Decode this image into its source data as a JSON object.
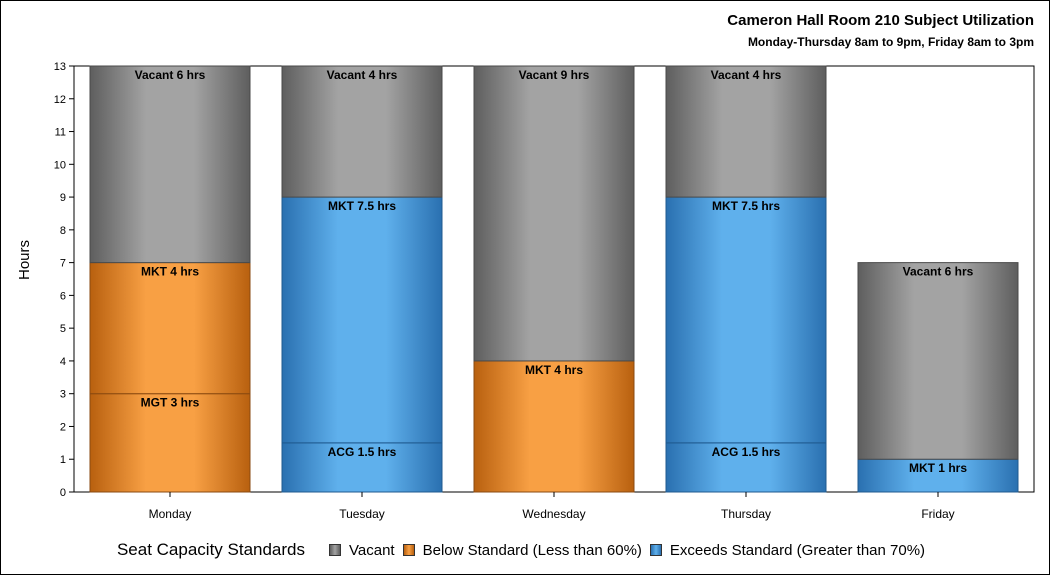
{
  "chart_data": {
    "type": "bar",
    "stacked": true,
    "title": "Cameron Hall Room 210 Subject Utilization",
    "subtitle": "Monday-Thursday 8am to 9pm, Friday 8am to 3pm",
    "xlabel": "",
    "ylabel": "Hours",
    "ylim": [
      0,
      13
    ],
    "yticks": [
      "0",
      "1",
      "2",
      "3",
      "4",
      "5",
      "6",
      "7",
      "8",
      "9",
      "10",
      "11",
      "12",
      "13"
    ],
    "categories": [
      "Monday",
      "Tuesday",
      "Wednesday",
      "Thursday",
      "Friday"
    ],
    "grid": false,
    "legend": {
      "title": "Seat Capacity Standards",
      "placement": "bottom",
      "items": [
        {
          "label": "Vacant",
          "color": "#9e9e9e"
        },
        {
          "label": "Below Standard (Less than 60%)",
          "color": "#f59a3c"
        },
        {
          "label": "Exceeds Standard (Greater than 70%)",
          "color": "#5aace8"
        }
      ]
    },
    "stacks": [
      {
        "category": "Monday",
        "segments": [
          {
            "label": "MGT 3 hrs",
            "value": 3,
            "status": "Below Standard (Less than 60%)"
          },
          {
            "label": "MKT 4 hrs",
            "value": 4,
            "status": "Below Standard (Less than 60%)"
          },
          {
            "label": "Vacant 6 hrs",
            "value": 6,
            "status": "Vacant"
          }
        ]
      },
      {
        "category": "Tuesday",
        "segments": [
          {
            "label": "ACG 1.5 hrs",
            "value": 1.5,
            "status": "Exceeds Standard (Greater than 70%)"
          },
          {
            "label": "MKT 7.5 hrs",
            "value": 7.5,
            "status": "Exceeds Standard (Greater than 70%)"
          },
          {
            "label": "Vacant 4 hrs",
            "value": 4,
            "status": "Vacant"
          }
        ]
      },
      {
        "category": "Wednesday",
        "segments": [
          {
            "label": "MKT 4 hrs",
            "value": 4,
            "status": "Below Standard (Less than 60%)"
          },
          {
            "label": "Vacant 9 hrs",
            "value": 9,
            "status": "Vacant"
          }
        ]
      },
      {
        "category": "Thursday",
        "segments": [
          {
            "label": "ACG 1.5 hrs",
            "value": 1.5,
            "status": "Exceeds Standard (Greater than 70%)"
          },
          {
            "label": "MKT 7.5 hrs",
            "value": 7.5,
            "status": "Exceeds Standard (Greater than 70%)"
          },
          {
            "label": "Vacant 4 hrs",
            "value": 4,
            "status": "Vacant"
          }
        ]
      },
      {
        "category": "Friday",
        "segments": [
          {
            "label": "MKT 1 hrs",
            "value": 1,
            "status": "Exceeds Standard (Greater than 70%)"
          },
          {
            "label": "Vacant 6 hrs",
            "value": 6,
            "status": "Vacant"
          }
        ]
      }
    ]
  }
}
